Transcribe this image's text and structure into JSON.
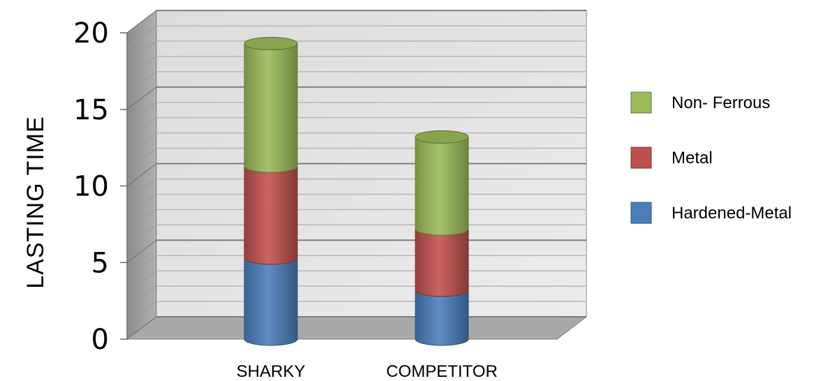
{
  "chart_data": {
    "type": "bar",
    "stacked": true,
    "categories": [
      "SHARKY",
      "COMPETITOR"
    ],
    "series": [
      {
        "name": "Hardened-Metal",
        "values": [
          5.3,
          3.2
        ]
      },
      {
        "name": "Metal",
        "values": [
          6.0,
          4.0
        ]
      },
      {
        "name": "Non- Ferrous",
        "values": [
          8.0,
          6.0
        ]
      }
    ],
    "title": "",
    "xlabel": "",
    "ylabel": "LASTING TIME",
    "ylim": [
      0,
      20
    ],
    "yticks": [
      "0",
      "5",
      "10",
      "15",
      "20"
    ],
    "grid": true,
    "legend_position": "right",
    "legend_order": [
      "Non- Ferrous",
      "Metal",
      "Hardened-Metal"
    ],
    "colors": {
      "Hardened-Metal": "#4a7ebb",
      "Metal": "#c0504d",
      "Non- Ferrous": "#9bbb59"
    }
  }
}
